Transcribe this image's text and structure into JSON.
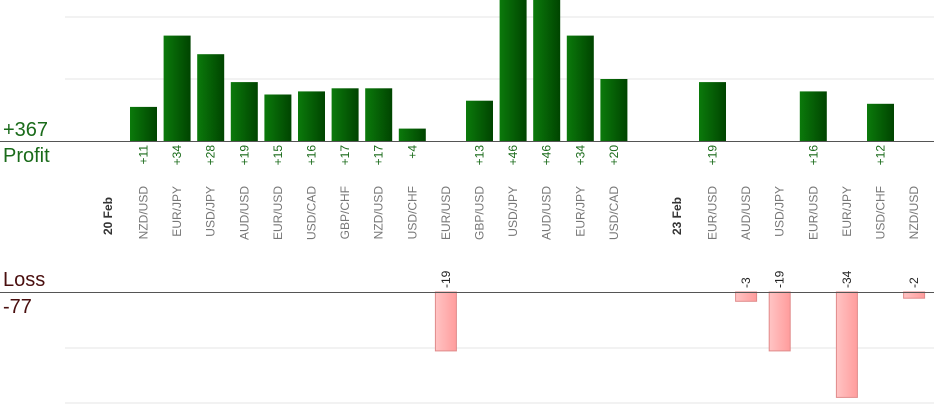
{
  "summary": {
    "profit_total": "+367",
    "profit_label": "Profit",
    "loss_label": "Loss",
    "loss_total": "-77"
  },
  "colors": {
    "profit_bar": "#006400",
    "profit_text": "#1a6b1a",
    "loss_bar": "#ffb3b3",
    "loss_border": "#e08a8a",
    "axis": "#555555",
    "grid": "#e6e6e6",
    "category_text": "#777777"
  },
  "chart_data": {
    "type": "bar",
    "grid": true,
    "date_groups": [
      {
        "date": "20 Feb",
        "categories": [
          "NZD/USD",
          "EUR/JPY",
          "USD/JPY",
          "AUD/USD",
          "EUR/USD",
          "USD/CAD",
          "GBP/CHF",
          "NZD/USD",
          "USD/CHF",
          "EUR/USD",
          "GBP/USD",
          "USD/JPY",
          "AUD/USD",
          "EUR/JPY",
          "USD/CAD"
        ]
      },
      {
        "date": "23 Feb",
        "categories": [
          "EUR/USD",
          "AUD/USD",
          "USD/JPY",
          "EUR/USD",
          "EUR/JPY",
          "USD/CHF",
          "NZD/USD"
        ]
      }
    ],
    "profit_series": {
      "labels": [
        "+11",
        "+34",
        "+28",
        "+19",
        "+15",
        "+16",
        "+17",
        "+17",
        "+4",
        "",
        "+13",
        "+46",
        "+46",
        "+34",
        "+20",
        "+19",
        "",
        "",
        "+16",
        "",
        "+12",
        ""
      ],
      "values": [
        11,
        34,
        28,
        19,
        15,
        16,
        17,
        17,
        4,
        0,
        13,
        46,
        46,
        34,
        20,
        19,
        0,
        0,
        16,
        0,
        12,
        0
      ]
    },
    "loss_series": {
      "labels": [
        "",
        "",
        "",
        "",
        "",
        "",
        "",
        "",
        "",
        "-19",
        "",
        "",
        "",
        "",
        "",
        "",
        "-3",
        "-19",
        "",
        "-34",
        "",
        "-2"
      ],
      "values": [
        0,
        0,
        0,
        0,
        0,
        0,
        0,
        0,
        0,
        -19,
        0,
        0,
        0,
        0,
        0,
        0,
        -3,
        -19,
        0,
        -34,
        0,
        -2
      ]
    }
  }
}
